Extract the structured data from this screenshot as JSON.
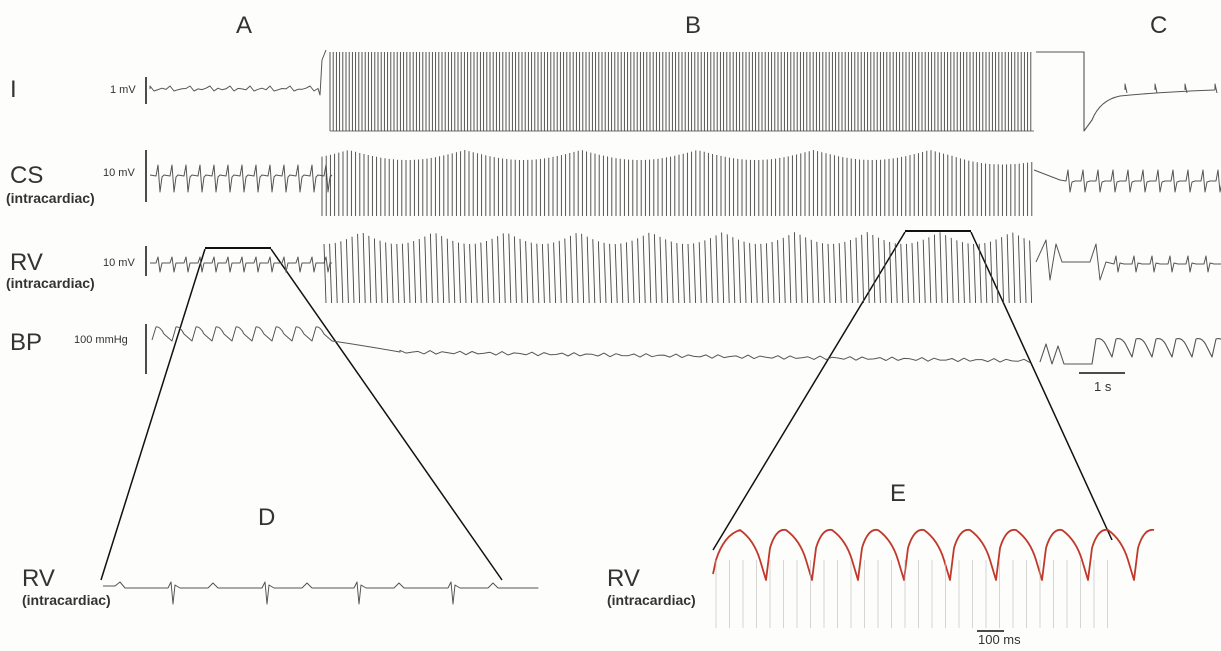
{
  "panels": {
    "a": "A",
    "b": "B",
    "c": "C",
    "d": "D",
    "e": "E"
  },
  "rows": {
    "i": {
      "label": "I",
      "scale": "1 mV"
    },
    "cs": {
      "label": "CS",
      "sub": "(intracardiac)",
      "scale": "10 mV"
    },
    "rv": {
      "label": "RV",
      "sub": "(intracardiac)",
      "scale": "10 mV"
    },
    "bp": {
      "label": "BP",
      "scale": "100 mmHg"
    }
  },
  "zoom_d": {
    "label": "RV",
    "sub": "(intracardiac)"
  },
  "zoom_e": {
    "label": "RV",
    "sub": "(intracardiac)"
  },
  "time_scales": {
    "main": "1 s",
    "zoom": "100 ms"
  },
  "colors": {
    "trace": "#555555",
    "zoom_trace": "#c0392b",
    "ink": "#111111"
  }
}
